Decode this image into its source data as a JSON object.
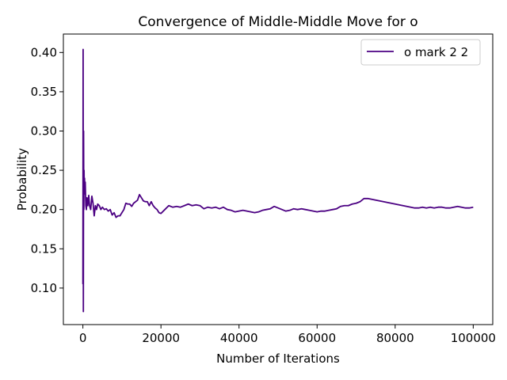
{
  "chart_data": {
    "type": "line",
    "title": "Convergence of Middle-Middle Move for o",
    "xlabel": "Number of Iterations",
    "ylabel": "Probability",
    "xlim": [
      -5000,
      105000
    ],
    "ylim": [
      0.0535,
      0.4235
    ],
    "xticks": [
      0,
      20000,
      40000,
      60000,
      80000,
      100000
    ],
    "xtick_labels": [
      "0",
      "20000",
      "40000",
      "60000",
      "80000",
      "100000"
    ],
    "yticks": [
      0.1,
      0.15,
      0.2,
      0.25,
      0.3,
      0.35,
      0.4
    ],
    "ytick_labels": [
      "0.10",
      "0.15",
      "0.20",
      "0.25",
      "0.30",
      "0.35",
      "0.40"
    ],
    "grid": false,
    "legend_position": "upper right",
    "series": [
      {
        "name": "o mark 2 2",
        "color": "#4b0082",
        "x": [
          0,
          60,
          120,
          180,
          240,
          300,
          360,
          420,
          480,
          600,
          750,
          900,
          1050,
          1250,
          1500,
          1700,
          2000,
          2300,
          2600,
          2900,
          3200,
          3500,
          3800,
          4200,
          4600,
          5000,
          5500,
          6000,
          6500,
          7000,
          7500,
          8000,
          8500,
          9000,
          9500,
          10000,
          10500,
          11000,
          11500,
          12000,
          12500,
          13000,
          13500,
          14000,
          14500,
          15000,
          15500,
          16000,
          16500,
          17000,
          17500,
          18000,
          18500,
          19000,
          19500,
          20000,
          21000,
          22000,
          23000,
          24000,
          25000,
          26000,
          27000,
          28000,
          29000,
          30000,
          31000,
          32000,
          33000,
          34000,
          35000,
          36000,
          37000,
          38000,
          39000,
          40000,
          41000,
          42000,
          43000,
          44000,
          45000,
          46000,
          47000,
          48000,
          49000,
          50000,
          51000,
          52000,
          53000,
          54000,
          55000,
          56000,
          57000,
          58000,
          59000,
          60000,
          61000,
          62000,
          63000,
          64000,
          65000,
          66000,
          67000,
          68000,
          69000,
          70000,
          71000,
          72000,
          73000,
          74000,
          75000,
          76000,
          77000,
          78000,
          79000,
          80000,
          81000,
          82000,
          83000,
          84000,
          85000,
          86000,
          87000,
          88000,
          89000,
          90000,
          91000,
          92000,
          93000,
          94000,
          95000,
          96000,
          97000,
          98000,
          99000,
          100000
        ],
        "y": [
          0.105,
          0.404,
          0.07,
          0.3,
          0.2,
          0.25,
          0.22,
          0.24,
          0.23,
          0.235,
          0.205,
          0.2,
          0.215,
          0.205,
          0.218,
          0.205,
          0.2,
          0.217,
          0.208,
          0.192,
          0.205,
          0.2,
          0.207,
          0.205,
          0.2,
          0.203,
          0.2,
          0.201,
          0.198,
          0.2,
          0.193,
          0.196,
          0.19,
          0.192,
          0.192,
          0.196,
          0.2,
          0.208,
          0.207,
          0.207,
          0.204,
          0.208,
          0.21,
          0.212,
          0.219,
          0.215,
          0.211,
          0.21,
          0.21,
          0.205,
          0.21,
          0.205,
          0.202,
          0.2,
          0.196,
          0.195,
          0.2,
          0.205,
          0.203,
          0.204,
          0.203,
          0.205,
          0.207,
          0.205,
          0.206,
          0.205,
          0.201,
          0.203,
          0.202,
          0.203,
          0.201,
          0.203,
          0.2,
          0.199,
          0.197,
          0.198,
          0.199,
          0.198,
          0.197,
          0.196,
          0.197,
          0.199,
          0.2,
          0.201,
          0.204,
          0.202,
          0.2,
          0.198,
          0.199,
          0.201,
          0.2,
          0.201,
          0.2,
          0.199,
          0.198,
          0.197,
          0.198,
          0.198,
          0.199,
          0.2,
          0.201,
          0.204,
          0.205,
          0.205,
          0.207,
          0.208,
          0.21,
          0.214,
          0.214,
          0.213,
          0.212,
          0.211,
          0.21,
          0.209,
          0.208,
          0.207,
          0.206,
          0.205,
          0.204,
          0.203,
          0.202,
          0.202,
          0.203,
          0.202,
          0.203,
          0.202,
          0.203,
          0.203,
          0.202,
          0.202,
          0.203,
          0.204,
          0.203,
          0.202,
          0.202,
          0.203
        ]
      }
    ]
  }
}
